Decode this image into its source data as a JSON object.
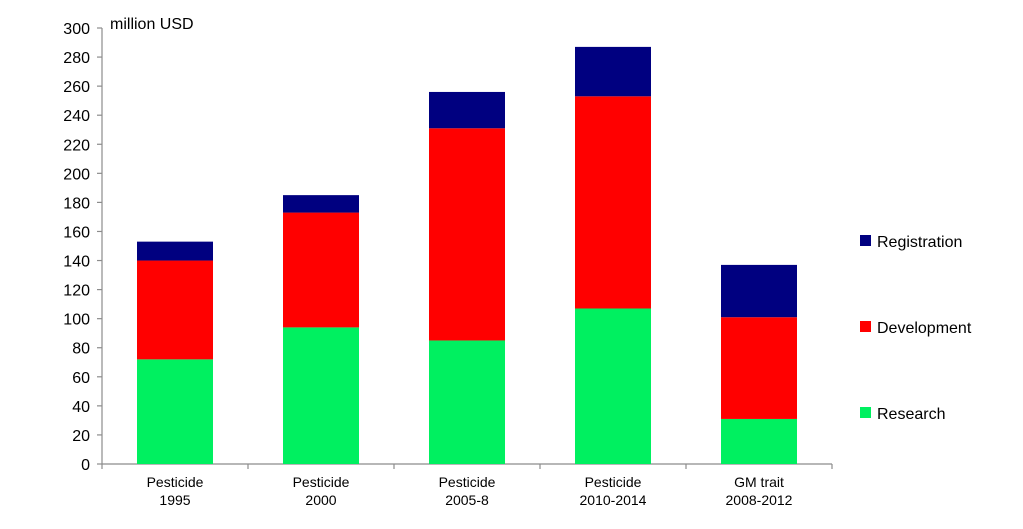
{
  "chart_data": {
    "type": "bar",
    "stacked": true,
    "unit_label": "million USD",
    "categories": [
      [
        "Pesticide",
        "1995"
      ],
      [
        "Pesticide",
        "2000"
      ],
      [
        "Pesticide",
        "2005-8"
      ],
      [
        "Pesticide",
        "2010-2014"
      ],
      [
        "GM trait",
        "2008-2012"
      ]
    ],
    "series": [
      {
        "name": "Research",
        "color": "#00F060",
        "values": [
          72,
          94,
          85,
          107,
          31
        ]
      },
      {
        "name": "Development",
        "color": "#FF0000",
        "values": [
          68,
          79,
          146,
          146,
          70
        ]
      },
      {
        "name": "Registration",
        "color": "#000080",
        "values": [
          13,
          12,
          25,
          34,
          36
        ]
      }
    ],
    "ylim": [
      0,
      300
    ],
    "yticks": [
      0,
      20,
      40,
      60,
      80,
      100,
      120,
      140,
      160,
      180,
      200,
      220,
      240,
      260,
      280,
      300
    ],
    "grid": false,
    "legend_position": "right",
    "legend_order": [
      "Registration",
      "Development",
      "Research"
    ]
  }
}
